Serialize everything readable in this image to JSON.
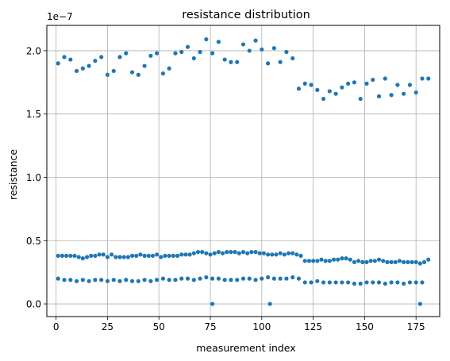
{
  "chart_data": {
    "type": "scatter",
    "title": "resistance distribution",
    "xlabel": "measurement index",
    "ylabel": "resistance",
    "y_offset_label": "1e−7",
    "xlim": [
      -4.5,
      186.5
    ],
    "ylim": [
      -0.1,
      2.2
    ],
    "y_scale_factor": 1e-07,
    "xticks": [
      0,
      25,
      50,
      75,
      100,
      125,
      150,
      175
    ],
    "xtick_labels": [
      "0",
      "25",
      "50",
      "75",
      "100",
      "125",
      "150",
      "175"
    ],
    "yticks": [
      0.0,
      0.5,
      1.0,
      1.5,
      2.0
    ],
    "ytick_labels": [
      "0.0",
      "0.5",
      "1.0",
      "1.5",
      "2.0"
    ],
    "grid": true,
    "marker_color": "#1f77b4",
    "series": [
      {
        "x": [
          1,
          4,
          7,
          10,
          13,
          16,
          19,
          22,
          25,
          28,
          31,
          34,
          37,
          40,
          43,
          46,
          49,
          52,
          55,
          58,
          61,
          64,
          67,
          70,
          73,
          76,
          79,
          82,
          85,
          88,
          91,
          94,
          97,
          100,
          103,
          106,
          109,
          112,
          115,
          118,
          121,
          124,
          127,
          130,
          133,
          136,
          139,
          142,
          145,
          148,
          151,
          154,
          157,
          160,
          163,
          166,
          169,
          172,
          175,
          178,
          181
        ],
        "values": [
          1.9,
          1.95,
          1.93,
          1.84,
          1.86,
          1.88,
          1.92,
          1.95,
          1.81,
          1.84,
          1.95,
          1.98,
          1.83,
          1.81,
          1.88,
          1.96,
          1.98,
          1.82,
          1.86,
          1.98,
          1.99,
          2.03,
          1.94,
          1.99,
          2.09,
          1.98,
          2.07,
          1.93,
          1.91,
          1.91,
          2.05,
          2.0,
          2.08,
          2.01,
          1.9,
          2.02,
          1.91,
          1.99,
          1.94,
          1.7,
          1.74,
          1.73,
          1.69,
          1.62,
          1.68,
          1.66,
          1.71,
          1.74,
          1.75,
          1.62,
          1.74,
          1.77,
          1.64,
          1.78,
          1.65,
          1.73,
          1.66,
          1.73,
          1.67,
          1.78,
          1.78
        ]
      },
      {
        "x": [
          1,
          3,
          5,
          7,
          9,
          11,
          13,
          15,
          17,
          19,
          21,
          23,
          25,
          27,
          29,
          31,
          33,
          35,
          37,
          39,
          41,
          43,
          45,
          47,
          49,
          51,
          53,
          55,
          57,
          59,
          61,
          63,
          65,
          67,
          69,
          71,
          73,
          75,
          77,
          79,
          81,
          83,
          85,
          87,
          89,
          91,
          93,
          95,
          97,
          99,
          101,
          103,
          105,
          107,
          109,
          111,
          113,
          115,
          117,
          119,
          121,
          123,
          125,
          127,
          129,
          131,
          133,
          135,
          137,
          139,
          141,
          143,
          145,
          147,
          149,
          151,
          153,
          155,
          157,
          159,
          161,
          163,
          165,
          167,
          169,
          171,
          173,
          175,
          177,
          179,
          181
        ],
        "values": [
          0.38,
          0.38,
          0.38,
          0.38,
          0.38,
          0.37,
          0.36,
          0.37,
          0.38,
          0.38,
          0.39,
          0.39,
          0.37,
          0.39,
          0.37,
          0.37,
          0.37,
          0.37,
          0.38,
          0.38,
          0.39,
          0.38,
          0.38,
          0.38,
          0.39,
          0.37,
          0.38,
          0.38,
          0.38,
          0.38,
          0.39,
          0.39,
          0.39,
          0.4,
          0.41,
          0.41,
          0.4,
          0.39,
          0.4,
          0.41,
          0.4,
          0.41,
          0.41,
          0.41,
          0.4,
          0.41,
          0.4,
          0.41,
          0.41,
          0.4,
          0.4,
          0.39,
          0.39,
          0.39,
          0.4,
          0.39,
          0.4,
          0.4,
          0.39,
          0.38,
          0.34,
          0.34,
          0.34,
          0.34,
          0.35,
          0.34,
          0.34,
          0.35,
          0.35,
          0.36,
          0.36,
          0.35,
          0.33,
          0.34,
          0.33,
          0.33,
          0.34,
          0.34,
          0.35,
          0.34,
          0.33,
          0.33,
          0.33,
          0.34,
          0.33,
          0.33,
          0.33,
          0.33,
          0.32,
          0.33,
          0.35
        ]
      },
      {
        "x": [
          1,
          4,
          7,
          10,
          13,
          16,
          19,
          22,
          25,
          28,
          31,
          34,
          37,
          40,
          43,
          46,
          49,
          52,
          55,
          58,
          61,
          64,
          67,
          70,
          73,
          76,
          79,
          82,
          85,
          88,
          91,
          94,
          97,
          100,
          103,
          106,
          109,
          112,
          115,
          118,
          121,
          124,
          127,
          130,
          133,
          136,
          139,
          142,
          145,
          148,
          151,
          154,
          157,
          160,
          163,
          166,
          169,
          172,
          175,
          178
        ],
        "values": [
          0.2,
          0.19,
          0.19,
          0.18,
          0.19,
          0.18,
          0.19,
          0.19,
          0.18,
          0.19,
          0.18,
          0.19,
          0.18,
          0.18,
          0.19,
          0.18,
          0.19,
          0.2,
          0.19,
          0.19,
          0.2,
          0.2,
          0.19,
          0.2,
          0.21,
          0.2,
          0.2,
          0.19,
          0.19,
          0.19,
          0.2,
          0.2,
          0.19,
          0.2,
          0.21,
          0.2,
          0.2,
          0.2,
          0.21,
          0.2,
          0.17,
          0.17,
          0.18,
          0.17,
          0.17,
          0.17,
          0.17,
          0.17,
          0.16,
          0.16,
          0.17,
          0.17,
          0.17,
          0.16,
          0.17,
          0.17,
          0.16,
          0.17,
          0.17,
          0.17
        ]
      },
      {
        "x": [
          76,
          104,
          177
        ],
        "values": [
          0.0,
          0.0,
          0.0
        ]
      }
    ]
  }
}
